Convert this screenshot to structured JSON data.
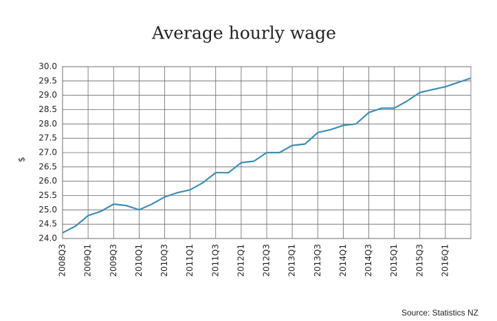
{
  "chart_data": {
    "type": "line",
    "title": "Average hourly wage",
    "y_label": "$",
    "source": "Source: Statistics NZ",
    "categories": [
      "2008Q3",
      null,
      "2009Q1",
      null,
      "2009Q3",
      null,
      "2010Q1",
      null,
      "2010Q3",
      null,
      "2011Q1",
      null,
      "2011Q3",
      null,
      "2012Q1",
      null,
      "2012Q3",
      null,
      "2013Q1",
      null,
      "2013Q3",
      null,
      "2014Q1",
      null,
      "2014Q3",
      null,
      "2015Q1",
      null,
      "2015Q3",
      null,
      "2016Q1",
      null,
      null
    ],
    "series": [
      {
        "name": "Average hourly wage",
        "color": "#3a8fb7",
        "values": [
          24.2,
          24.43,
          24.8,
          24.95,
          25.2,
          25.15,
          25.0,
          25.2,
          25.45,
          25.6,
          25.7,
          25.95,
          26.3,
          26.3,
          26.65,
          26.7,
          27.0,
          27.0,
          27.25,
          27.3,
          27.7,
          27.8,
          27.95,
          28.0,
          28.4,
          28.55,
          28.55,
          28.8,
          29.1,
          29.2,
          29.3,
          29.45,
          29.6
        ]
      }
    ],
    "ylim": [
      24.0,
      30.0
    ],
    "yticks": [
      {
        "value": 24.0,
        "label": "24.0"
      },
      24.5,
      {
        "value": 25.0,
        "label": "25.0"
      },
      25.5,
      {
        "value": 26.0,
        "label": "26.0"
      },
      26.5,
      {
        "value": 27.0,
        "label": "27.0"
      },
      27.5,
      {
        "value": 28.0,
        "label": "28.0"
      },
      28.5,
      {
        "value": 29.0,
        "label": "29.0"
      },
      29.5,
      {
        "value": 30.0,
        "label": "30.0"
      }
    ],
    "grid": true
  }
}
